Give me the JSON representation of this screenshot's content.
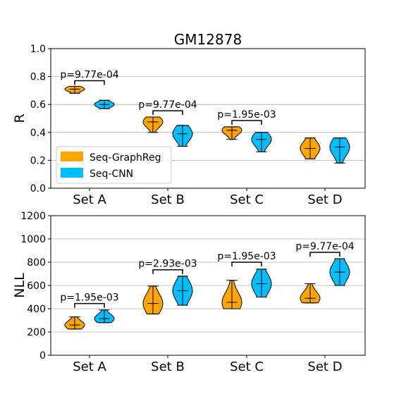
{
  "figure_title": "GM12878",
  "legend": {
    "entries": [
      {
        "label": "Seq-GraphReg",
        "color": "#ffa500"
      },
      {
        "label": "Seq-CNN",
        "color": "#00bfff"
      }
    ],
    "placement": "lower-left of top panel"
  },
  "chart_data": [
    {
      "type": "violin",
      "title": "GM12878",
      "ylabel": "R",
      "xlabel": "",
      "categories": [
        "Set A",
        "Set B",
        "Set C",
        "Set D"
      ],
      "ylim": [
        0.0,
        1.0
      ],
      "yticks": [
        "0.0",
        "0.2",
        "0.4",
        "0.6",
        "0.8",
        "1.0"
      ],
      "ytick_values": [
        0.0,
        0.2,
        0.4,
        0.6,
        0.8,
        1.0
      ],
      "grid": "horizontal",
      "series": [
        {
          "name": "Seq-GraphReg",
          "color": "#ffa500",
          "min": [
            0.68,
            0.4,
            0.35,
            0.21
          ],
          "max": [
            0.73,
            0.51,
            0.44,
            0.36
          ],
          "median": [
            0.71,
            0.475,
            0.415,
            0.285
          ]
        },
        {
          "name": "Seq-CNN",
          "color": "#00bfff",
          "min": [
            0.57,
            0.3,
            0.26,
            0.18
          ],
          "max": [
            0.63,
            0.45,
            0.4,
            0.36
          ],
          "median": [
            0.6,
            0.39,
            0.35,
            0.295
          ]
        }
      ],
      "annotations": [
        {
          "text": "p=9.77e-04",
          "category": 0,
          "bracket_y": 0.77
        },
        {
          "text": "p=9.77e-04",
          "category": 1,
          "bracket_y": 0.555
        },
        {
          "text": "p=1.95e-03",
          "category": 2,
          "bracket_y": 0.485
        }
      ]
    },
    {
      "type": "violin",
      "title": "",
      "ylabel": "NLL",
      "xlabel": "",
      "categories": [
        "Set A",
        "Set B",
        "Set C",
        "Set D"
      ],
      "ylim": [
        0,
        1200
      ],
      "yticks": [
        "0",
        "200",
        "400",
        "600",
        "800",
        "1000",
        "1200"
      ],
      "ytick_values": [
        0,
        200,
        400,
        600,
        800,
        1000,
        1200
      ],
      "grid": "horizontal",
      "series": [
        {
          "name": "Seq-GraphReg",
          "color": "#ffa500",
          "min": [
            225,
            355,
            400,
            450
          ],
          "max": [
            330,
            595,
            645,
            615
          ],
          "median": [
            260,
            445,
            455,
            490
          ]
        },
        {
          "name": "Seq-CNN",
          "color": "#00bfff",
          "min": [
            280,
            430,
            500,
            600
          ],
          "max": [
            390,
            680,
            740,
            830
          ],
          "median": [
            315,
            555,
            615,
            715
          ]
        }
      ],
      "annotations": [
        {
          "text": "p=1.95e-03",
          "category": 0,
          "bracket_y": 445
        },
        {
          "text": "p=2.93e-03",
          "category": 1,
          "bracket_y": 735
        },
        {
          "text": "p=1.95e-03",
          "category": 2,
          "bracket_y": 800
        },
        {
          "text": "p=9.77e-04",
          "category": 3,
          "bracket_y": 885
        }
      ]
    }
  ]
}
